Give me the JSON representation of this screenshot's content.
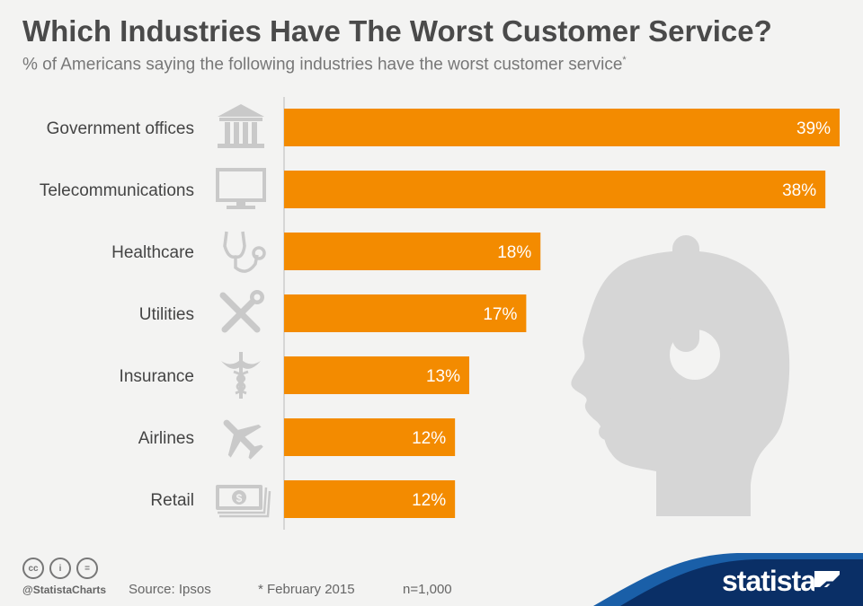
{
  "header": {
    "title": "Which Industries Have The Worst Customer Service?",
    "subtitle": "% of Americans saying the following industries have the worst customer service",
    "subtitle_marker": "*"
  },
  "chart_data": {
    "type": "bar",
    "orientation": "horizontal",
    "categories": [
      "Government offices",
      "Telecommunications",
      "Healthcare",
      "Utilities",
      "Insurance",
      "Airlines",
      "Retail"
    ],
    "values": [
      39,
      38,
      18,
      17,
      13,
      12,
      12
    ],
    "value_suffix": "%",
    "icons": [
      "government-building-icon",
      "monitor-icon",
      "stethoscope-icon",
      "tools-icon",
      "caduceus-icon",
      "airplane-icon",
      "money-icon"
    ],
    "xlim": [
      0,
      39
    ],
    "bar_color": "#f38b00",
    "grid": false
  },
  "footer": {
    "handle": "@StatistaCharts",
    "source": "Source: Ipsos",
    "note": "* February 2015",
    "sample": "n=1,000",
    "brand": "statista"
  },
  "colors": {
    "background": "#f3f3f2",
    "bar": "#f38b00",
    "icon": "#c9c9c9",
    "brand_blue": "#0a2f66",
    "brand_accent": "#1a5fa8"
  }
}
